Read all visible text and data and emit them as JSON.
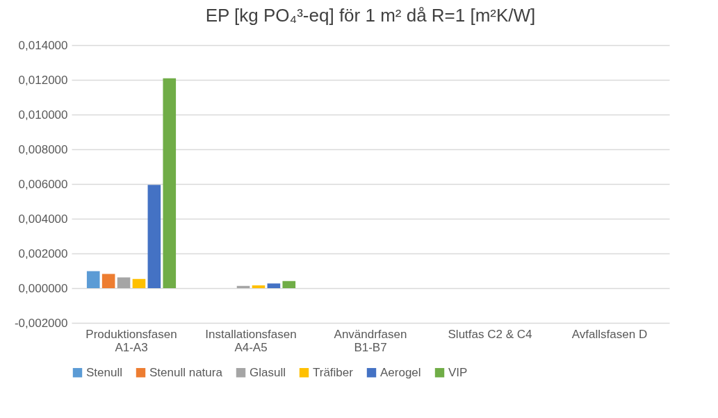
{
  "chart_data": {
    "type": "bar",
    "title": "EP [kg PO₄³-eq] för 1 m² då R=1 [m²K/W]",
    "categories": [
      "Produktionsfasen\nA1-A3",
      "Installationsfasen\nA4-A5",
      "Användrfasen\nB1-B7",
      "Slutfas C2 & C4",
      "Avfallsfasen D"
    ],
    "series": [
      {
        "name": "Stenull",
        "color": "#5b9bd5",
        "values": [
          0.00098,
          0,
          0,
          0,
          0
        ]
      },
      {
        "name": "Stenull natura",
        "color": "#ed7d31",
        "values": [
          0.00082,
          0,
          0,
          0,
          0
        ]
      },
      {
        "name": "Glasull",
        "color": "#a5a5a5",
        "values": [
          0.00062,
          0.00013,
          0,
          0,
          0
        ]
      },
      {
        "name": "Träfiber",
        "color": "#ffc000",
        "values": [
          0.00053,
          0.00016,
          0,
          0,
          0
        ]
      },
      {
        "name": "Aerogel",
        "color": "#4472c4",
        "values": [
          0.00595,
          0.00027,
          0,
          0,
          0
        ]
      },
      {
        "name": "VIP",
        "color": "#70ad47",
        "values": [
          0.01209,
          0.00041,
          0,
          0,
          0
        ]
      }
    ],
    "ylim": [
      -0.002,
      0.014
    ],
    "yticks": [
      {
        "value": -0.002,
        "label": "-0,002000"
      },
      {
        "value": 0,
        "label": "0,000000"
      },
      {
        "value": 0.002,
        "label": "0,002000"
      },
      {
        "value": 0.004,
        "label": "0,004000"
      },
      {
        "value": 0.006,
        "label": "0,006000"
      },
      {
        "value": 0.008,
        "label": "0,008000"
      },
      {
        "value": 0.01,
        "label": "0,010000"
      },
      {
        "value": 0.012,
        "label": "0,012000"
      },
      {
        "value": 0.014,
        "label": "0,014000"
      }
    ],
    "grid": "y",
    "legend": "bottom"
  }
}
